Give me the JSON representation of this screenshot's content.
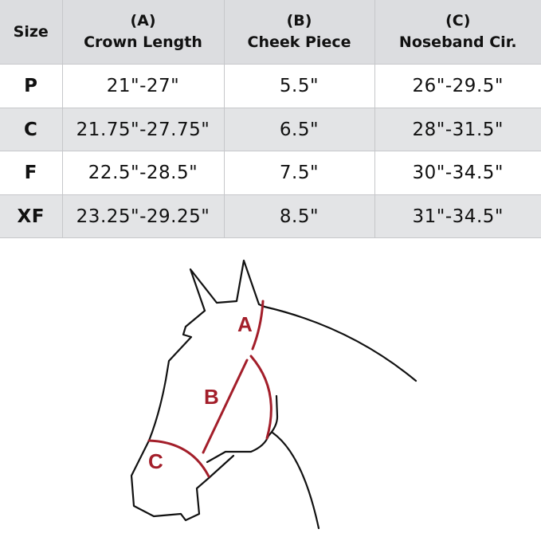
{
  "table": {
    "headers": [
      {
        "letter": "",
        "label": "Size"
      },
      {
        "letter": "(A)",
        "label": "Crown Length"
      },
      {
        "letter": "(B)",
        "label": "Cheek Piece"
      },
      {
        "letter": "(C)",
        "label": "Noseband Cir."
      }
    ],
    "rows": [
      {
        "size": "P",
        "crown": "21\"-27\"",
        "cheek": "5.5\"",
        "noseband": "26\"-29.5\""
      },
      {
        "size": "C",
        "crown": "21.75\"-27.75\"",
        "cheek": "6.5\"",
        "noseband": "28\"-31.5\""
      },
      {
        "size": "F",
        "crown": "22.5\"-28.5\"",
        "cheek": "7.5\"",
        "noseband": "30\"-34.5\""
      },
      {
        "size": "XF",
        "crown": "23.25\"-29.25\"",
        "cheek": "8.5\"",
        "noseband": "31\"-34.5\""
      }
    ]
  },
  "diagram": {
    "labels": {
      "a": "A",
      "b": "B",
      "c": "C"
    },
    "measure_color": "#a31e2a",
    "outline_color": "#111111"
  }
}
